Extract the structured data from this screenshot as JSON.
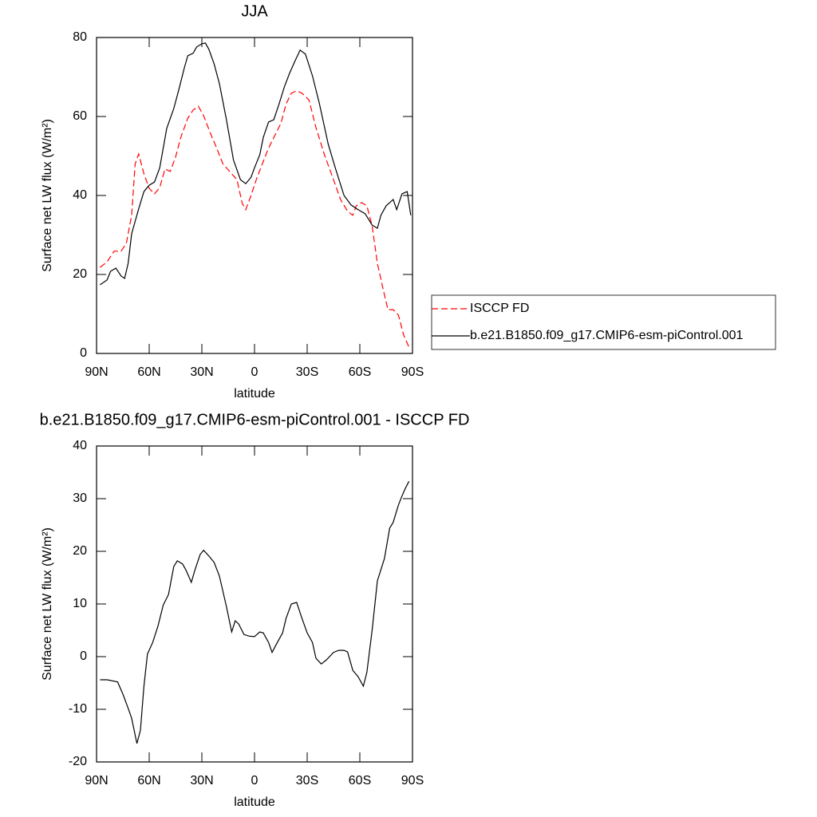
{
  "chart_data": [
    {
      "type": "line",
      "title": "JJA",
      "xlabel": "latitude",
      "ylabel": "Surface net LW flux (W/m²)",
      "xlim": [
        90,
        -90
      ],
      "xticks": [
        {
          "value": 90,
          "label": "90N"
        },
        {
          "value": 60,
          "label": "60N"
        },
        {
          "value": 30,
          "label": "30N"
        },
        0,
        {
          "value": -30,
          "label": "30S"
        },
        {
          "value": -60,
          "label": "60S"
        },
        {
          "value": -90,
          "label": "90S"
        }
      ],
      "ylim": [
        0,
        80
      ],
      "yticks": [
        0,
        20,
        40,
        60,
        80
      ],
      "legend": "right",
      "series": [
        {
          "name": "ISCCP FD",
          "color": "#ff0000",
          "line_style": "dashed",
          "x": [
            88,
            84,
            80,
            76,
            73,
            70,
            68,
            66,
            63,
            60,
            57,
            54,
            51,
            48,
            45,
            42,
            38,
            35,
            32,
            29,
            25,
            22,
            18,
            14,
            10,
            7,
            5,
            2,
            -1,
            -4,
            -8,
            -12,
            -15,
            -18,
            -21,
            -24,
            -27,
            -31,
            -35,
            -40,
            -45,
            -49,
            -53,
            -56,
            -58,
            -61,
            -64,
            -67,
            -70,
            -73,
            -76,
            -79,
            -82,
            -85,
            -88
          ],
          "values": [
            21.8,
            23.2,
            25.9,
            25.9,
            27.9,
            35,
            48,
            50.5,
            45.5,
            41.8,
            40.4,
            42,
            46.7,
            46.1,
            49.7,
            54.7,
            59.6,
            61.6,
            62.6,
            60.2,
            55.6,
            52.5,
            48,
            46,
            44,
            38,
            36.4,
            40,
            44,
            47.5,
            52,
            55.6,
            58.2,
            63.2,
            65.9,
            66.5,
            65.9,
            64.2,
            57.2,
            50.1,
            44,
            39,
            36,
            35,
            37.4,
            38.2,
            37.4,
            32.3,
            22.8,
            16.8,
            11.1,
            11.1,
            9.7,
            4.6,
            1.6
          ]
        },
        {
          "name": "b.e21.B1850.f09_g17.CMIP6-esm-piControl.001",
          "color": "#000000",
          "line_style": "solid",
          "x": [
            88,
            84,
            82,
            79,
            76,
            74,
            72,
            70,
            66,
            63,
            60,
            57,
            54,
            50,
            46,
            43,
            40,
            38,
            35,
            33,
            30,
            28,
            26,
            23,
            20,
            16,
            12,
            8,
            5,
            2,
            0,
            -3,
            -5,
            -8,
            -11,
            -14,
            -17,
            -20,
            -23,
            -26,
            -29,
            -33,
            -37,
            -42,
            -46,
            -51,
            -55,
            -59,
            -63,
            -67,
            -70,
            -72,
            -75,
            -79,
            -81,
            -84,
            -87,
            -89
          ],
          "values": [
            17.4,
            18.6,
            20.8,
            21.6,
            19.6,
            19,
            22.8,
            30.3,
            36.6,
            41,
            42.6,
            43.4,
            47,
            57,
            62,
            67,
            72.3,
            75.4,
            76,
            77.6,
            78.4,
            78.6,
            77,
            73.3,
            68.3,
            59.2,
            49,
            44,
            43,
            44.6,
            47,
            50.3,
            54.7,
            58.6,
            59.2,
            63.2,
            67.5,
            71,
            74,
            76.8,
            75.8,
            70.3,
            63.2,
            53,
            47,
            40,
            37.6,
            36.4,
            35.4,
            32.5,
            31.7,
            35,
            37.4,
            39,
            36.4,
            40.4,
            41,
            35
          ]
        }
      ]
    },
    {
      "type": "line",
      "title": "b.e21.B1850.f09_g17.CMIP6-esm-piControl.001 - ISCCP FD",
      "xlabel": "latitude",
      "ylabel": "Surface net LW flux (W/m²)",
      "xlim": [
        90,
        -90
      ],
      "xticks": [
        {
          "value": 90,
          "label": "90N"
        },
        {
          "value": 60,
          "label": "60N"
        },
        {
          "value": 30,
          "label": "30N"
        },
        0,
        {
          "value": -30,
          "label": "30S"
        },
        {
          "value": -60,
          "label": "60S"
        },
        {
          "value": -90,
          "label": "90S"
        }
      ],
      "ylim": [
        -20,
        40
      ],
      "yticks": [
        -20,
        -10,
        0,
        10,
        20,
        30,
        40
      ],
      "series": [
        {
          "color": "#000000",
          "line_style": "solid",
          "x": [
            88,
            84,
            78,
            75,
            72,
            70,
            67,
            65,
            63,
            61,
            58,
            55,
            52,
            49,
            46,
            44,
            41,
            39,
            36,
            34,
            31,
            29,
            26,
            23,
            20,
            16,
            13,
            11,
            9,
            6,
            3,
            0,
            -3,
            -5,
            -8,
            -10,
            -13,
            -16,
            -18,
            -21,
            -24,
            -27,
            -30,
            -33,
            -35,
            -38,
            -41,
            -45,
            -48,
            -51,
            -53,
            -56,
            -59,
            -62,
            -64,
            -67,
            -70,
            -74,
            -77,
            -79,
            -82,
            -84,
            -86,
            -88
          ],
          "values": [
            -4.4,
            -4.4,
            -4.8,
            -7.1,
            -9.8,
            -11.7,
            -16.5,
            -14,
            -5.6,
            0.5,
            2.7,
            5.8,
            9.8,
            11.8,
            17.1,
            18.2,
            17.6,
            16.4,
            14.1,
            16.4,
            19.4,
            20.2,
            19.1,
            17.9,
            15.3,
            9.5,
            4.7,
            6.8,
            6.2,
            4.2,
            3.9,
            3.8,
            4.7,
            4.5,
            2.7,
            0.8,
            2.7,
            4.5,
            7.3,
            10,
            10.3,
            7.3,
            4.5,
            2.7,
            -0.3,
            -1.4,
            -0.6,
            0.8,
            1.2,
            1.2,
            0.9,
            -2.6,
            -3.8,
            -5.6,
            -3,
            5,
            14.4,
            18.6,
            24.4,
            25.5,
            28.8,
            30.5,
            32,
            33.3
          ]
        }
      ]
    }
  ]
}
